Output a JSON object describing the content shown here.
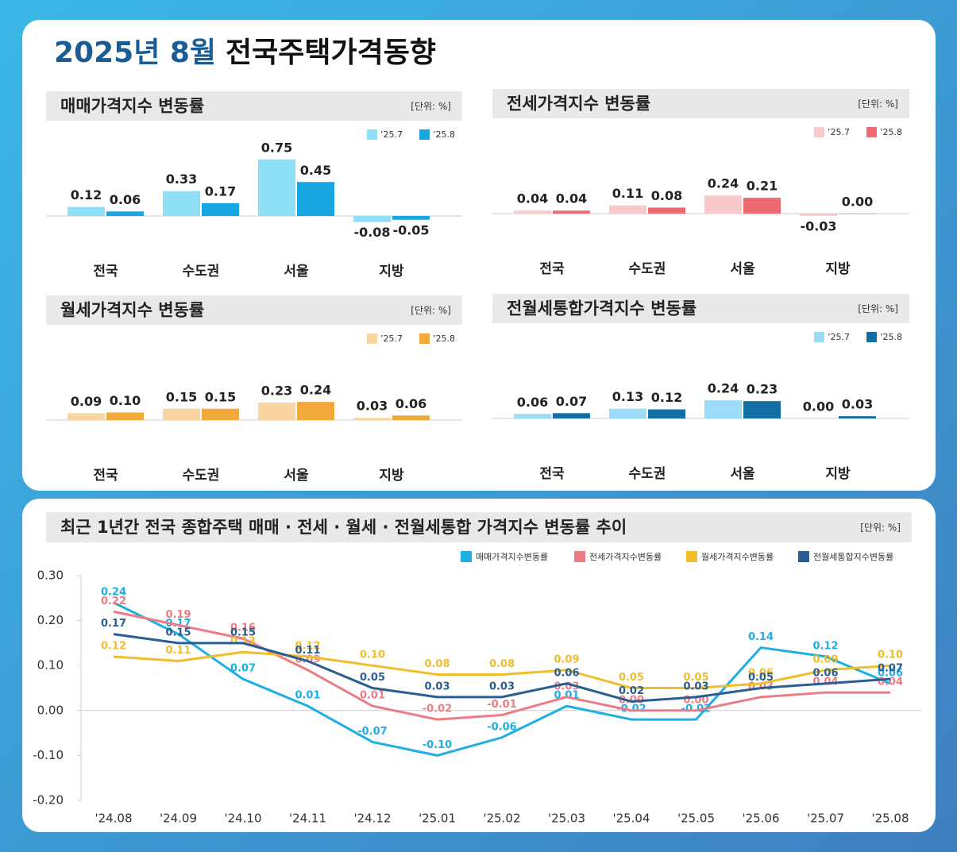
{
  "header": {
    "date": "2025년 8월",
    "title": "전국주택가격동향"
  },
  "chart_data": [
    {
      "type": "bar",
      "title": "매매가격지수 변동률",
      "unit": "[단위: %]",
      "categories": [
        "전국",
        "수도권",
        "서울",
        "지방"
      ],
      "series": [
        {
          "name": "’25.7",
          "color": "#8fdff6",
          "values": [
            0.12,
            0.33,
            0.75,
            -0.08
          ],
          "value_labels": [
            "0.12",
            "0.33",
            "0.75",
            "-0.08"
          ]
        },
        {
          "name": "’25.8",
          "color": "#17a6e0",
          "values": [
            0.06,
            0.17,
            0.45,
            -0.05
          ],
          "value_labels": [
            "0.06",
            "0.17",
            "0.45",
            "-0.05"
          ]
        }
      ]
    },
    {
      "type": "bar",
      "title": "전세가격지수 변동률",
      "unit": "[단위: %]",
      "categories": [
        "전국",
        "수도권",
        "서울",
        "지방"
      ],
      "series": [
        {
          "name": "’25.7",
          "color": "#f9c9cb",
          "values": [
            0.04,
            0.11,
            0.24,
            -0.03
          ],
          "value_labels": [
            "0.04",
            "0.11",
            "0.24",
            "-0.03"
          ]
        },
        {
          "name": "’25.8",
          "color": "#ee6a72",
          "values": [
            0.04,
            0.08,
            0.21,
            0.0
          ],
          "value_labels": [
            "0.04",
            "0.08",
            "0.21",
            "0.00"
          ]
        }
      ]
    },
    {
      "type": "bar",
      "title": "월세가격지수 변동률",
      "unit": "[단위: %]",
      "categories": [
        "전국",
        "수도권",
        "서울",
        "지방"
      ],
      "series": [
        {
          "name": "’25.7",
          "color": "#f9d5a2",
          "values": [
            0.09,
            0.15,
            0.23,
            0.03
          ],
          "value_labels": [
            "0.09",
            "0.15",
            "0.23",
            "0.03"
          ]
        },
        {
          "name": "’25.8",
          "color": "#f2a83b",
          "values": [
            0.1,
            0.15,
            0.24,
            0.06
          ],
          "value_labels": [
            "0.10",
            "0.15",
            "0.24",
            "0.06"
          ]
        }
      ]
    },
    {
      "type": "bar",
      "title": "전월세통합가격지수 변동률",
      "unit": "[단위: %]",
      "categories": [
        "전국",
        "수도권",
        "서울",
        "지방"
      ],
      "series": [
        {
          "name": "’25.7",
          "color": "#9ddcf6",
          "values": [
            0.06,
            0.13,
            0.24,
            0.0
          ],
          "value_labels": [
            "0.06",
            "0.13",
            "0.24",
            "0.00"
          ]
        },
        {
          "name": "’25.8",
          "color": "#136ea4",
          "values": [
            0.07,
            0.12,
            0.23,
            0.03
          ],
          "value_labels": [
            "0.07",
            "0.12",
            "0.23",
            "0.03"
          ]
        }
      ]
    },
    {
      "type": "line",
      "title": "최근 1년간 전국 종합주택 매매 · 전세 · 월세 · 전월세통합 가격지수 변동률 추이",
      "unit": "[단위: %]",
      "categories": [
        "'24.08",
        "'24.09",
        "'24.10",
        "'24.11",
        "'24.12",
        "'25.01",
        "'25.02",
        "'25.03",
        "'25.04",
        "'25.05",
        "'25.06",
        "'25.07",
        "'25.08"
      ],
      "ylim": [
        -0.2,
        0.3
      ],
      "yticks": [
        {
          "value": 0.3,
          "label": "0.30"
        },
        {
          "value": 0.2,
          "label": "0.20"
        },
        {
          "value": 0.1,
          "label": "0.10"
        },
        {
          "value": 0,
          "label": "0.00"
        },
        {
          "value": -0.1,
          "label": "-0.10"
        },
        {
          "value": -0.2,
          "label": "-0.20"
        }
      ],
      "grid": false,
      "series": [
        {
          "name": "매매가격지수변동률",
          "color": "#1eaee3",
          "values": [
            0.24,
            0.17,
            0.07,
            0.01,
            -0.07,
            -0.1,
            -0.06,
            0.01,
            -0.02,
            -0.02,
            0.14,
            0.12,
            0.06
          ],
          "value_labels": [
            "0.24",
            "0.17",
            "0.07",
            "0.01",
            "-0.07",
            "-0.10",
            "-0.06",
            "0.01",
            "-0.02",
            "-0.02",
            "0.14",
            "0.12",
            "0.06"
          ]
        },
        {
          "name": "전세가격지수변동률",
          "color": "#ec7c83",
          "values": [
            0.22,
            0.19,
            0.16,
            0.09,
            0.01,
            -0.02,
            -0.01,
            0.03,
            0.0,
            0.0,
            0.03,
            0.04,
            0.04
          ],
          "value_labels": [
            "0.22",
            "0.19",
            "0.16",
            "0.09",
            "0.01",
            "-0.02",
            "-0.01",
            "0.03",
            "0.00",
            "0.00",
            "0.03",
            "0.04",
            "0.04"
          ]
        },
        {
          "name": "월세가격지수변동률",
          "color": "#f0bd2c",
          "values": [
            0.12,
            0.11,
            0.13,
            0.12,
            0.1,
            0.08,
            0.08,
            0.09,
            0.05,
            0.05,
            0.06,
            0.09,
            0.1
          ],
          "value_labels": [
            "0.12",
            "0.11",
            "0.13",
            "0.12",
            "0.10",
            "0.08",
            "0.08",
            "0.09",
            "0.05",
            "0.05",
            "0.06",
            "0.09",
            "0.10"
          ]
        },
        {
          "name": "전월세통합지수변동률",
          "color": "#2a5e92",
          "values": [
            0.17,
            0.15,
            0.15,
            0.11,
            0.05,
            0.03,
            0.03,
            0.06,
            0.02,
            0.03,
            0.05,
            0.06,
            0.07
          ],
          "value_labels": [
            "0.17",
            "0.15",
            "0.15",
            "0.11",
            "0.05",
            "0.03",
            "0.03",
            "0.06",
            "0.02",
            "0.03",
            "0.05",
            "0.06",
            "0.07"
          ]
        }
      ]
    }
  ]
}
